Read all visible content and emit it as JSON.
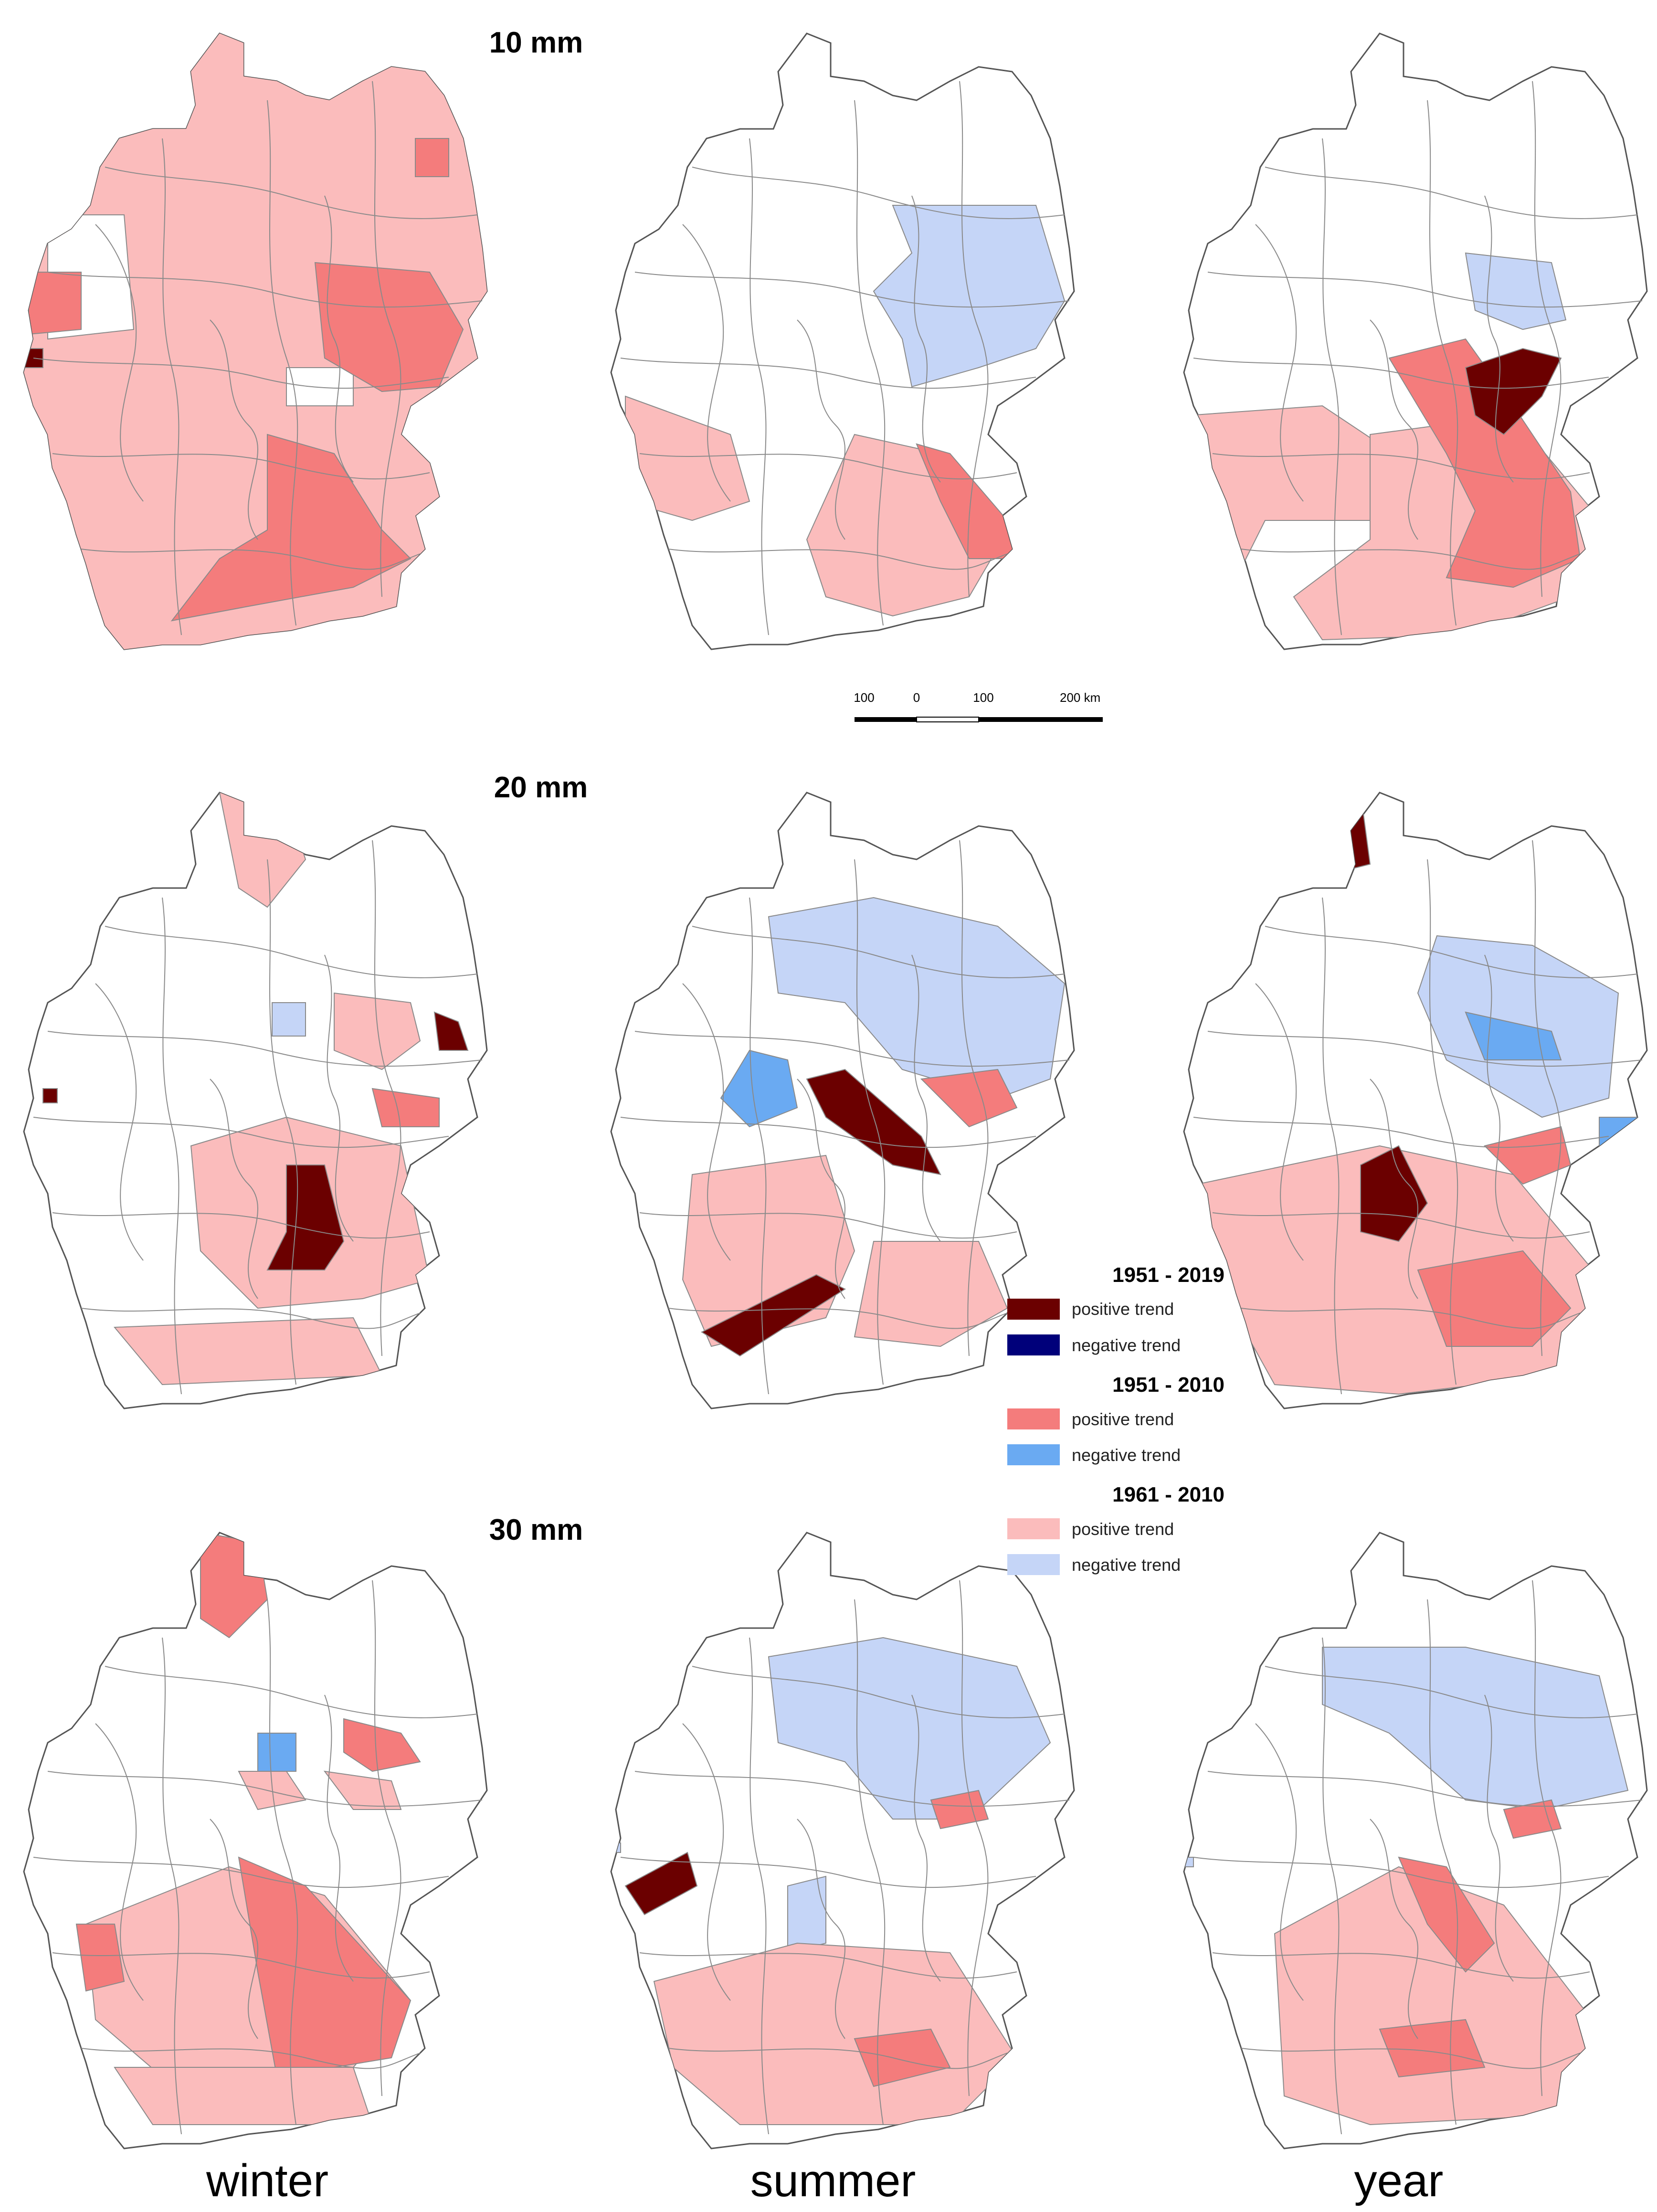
{
  "rows": [
    {
      "id": "10mm",
      "label": "10 mm"
    },
    {
      "id": "20mm",
      "label": "20 mm"
    },
    {
      "id": "30mm",
      "label": "30 mm"
    }
  ],
  "columns": [
    {
      "id": "winter",
      "label": "winter"
    },
    {
      "id": "summer",
      "label": "summer"
    },
    {
      "id": "year",
      "label": "year"
    }
  ],
  "scale_bar": {
    "labels": [
      "100",
      "0",
      "100",
      "200 km"
    ]
  },
  "legend": {
    "groups": [
      {
        "period": "1951 - 2019",
        "items": [
          {
            "label": "positive trend",
            "color": "#6b0000"
          },
          {
            "label": "negative trend",
            "color": "#00007a"
          }
        ]
      },
      {
        "period": "1951 - 2010",
        "items": [
          {
            "label": "positive trend",
            "color": "#f47c7c"
          },
          {
            "label": "negative trend",
            "color": "#6aaaf2"
          }
        ]
      },
      {
        "period": "1961 - 2010",
        "items": [
          {
            "label": "positive trend",
            "color": "#fbbcbc"
          },
          {
            "label": "negative trend",
            "color": "#c5d5f7"
          }
        ]
      }
    ]
  },
  "colors": {
    "pos_1951_2019": "#6b0000",
    "neg_1951_2019": "#00007a",
    "pos_1951_2010": "#f47c7c",
    "neg_1951_2010": "#6aaaf2",
    "pos_1961_2010": "#fbbcbc",
    "neg_1961_2010": "#c5d5f7"
  }
}
